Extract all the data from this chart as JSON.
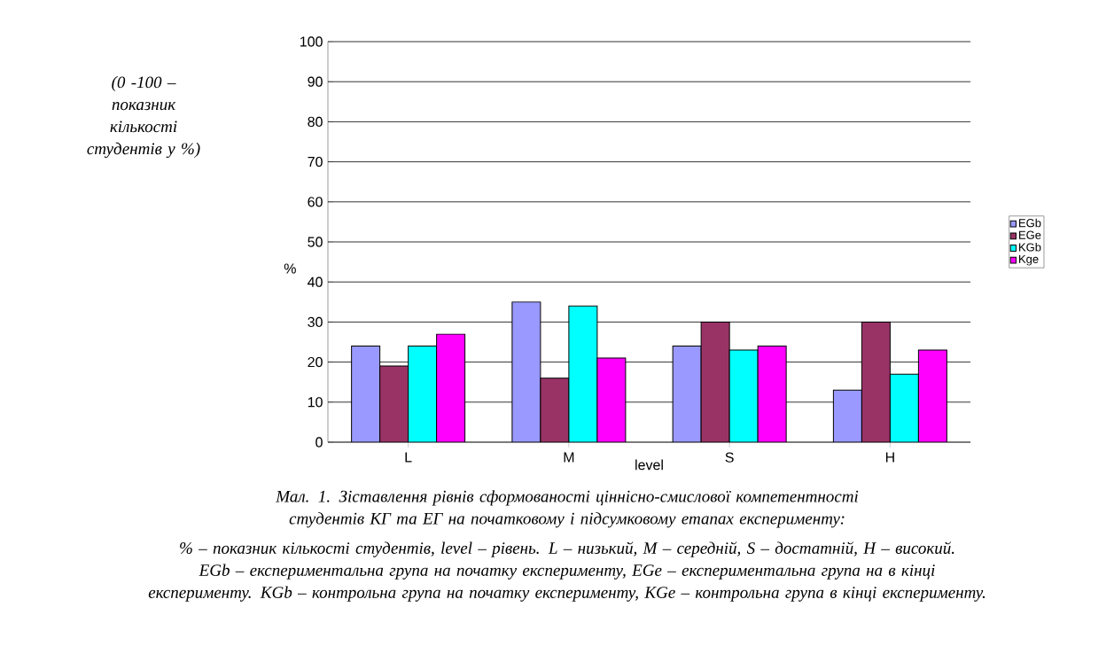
{
  "chart_data": {
    "type": "bar",
    "xlabel": "level",
    "ylabel": "%",
    "categories": [
      "L",
      "M",
      "S",
      "H"
    ],
    "series": [
      {
        "name": "EGb",
        "color": "#9999ff",
        "values": [
          24,
          35,
          24,
          13
        ]
      },
      {
        "name": "EGe",
        "color": "#993366",
        "values": [
          19,
          16,
          30,
          30
        ]
      },
      {
        "name": "KGb",
        "color": "#00ffff",
        "values": [
          24,
          34,
          23,
          17
        ]
      },
      {
        "name": "Kge",
        "color": "#ff00ff",
        "values": [
          27,
          21,
          24,
          23
        ]
      }
    ],
    "ylim": [
      0,
      100
    ],
    "yticks": [
      0,
      10,
      20,
      30,
      40,
      50,
      60,
      70,
      80,
      90,
      100
    ],
    "grid": "y",
    "legend": "right",
    "annotations": [
      "(0 -100 – показник кількості студентів у %)",
      "Мал. 1. Зіставлення рівнів сформованості ціннісно-смислової компетентності студентів КГ та ЕГ на початковому і підсумковому етапах експерименту:",
      "% – показник кількості студентів, level – рівень. L – низький, M – середній, S – достатній, H – високий. EGb – експериментальна група на початку експерименту, EGe – експериментальна група на в кінці експерименту. KGb – контрольна група на початку експерименту, KGe – контрольна група в кінці експерименту."
    ]
  }
}
